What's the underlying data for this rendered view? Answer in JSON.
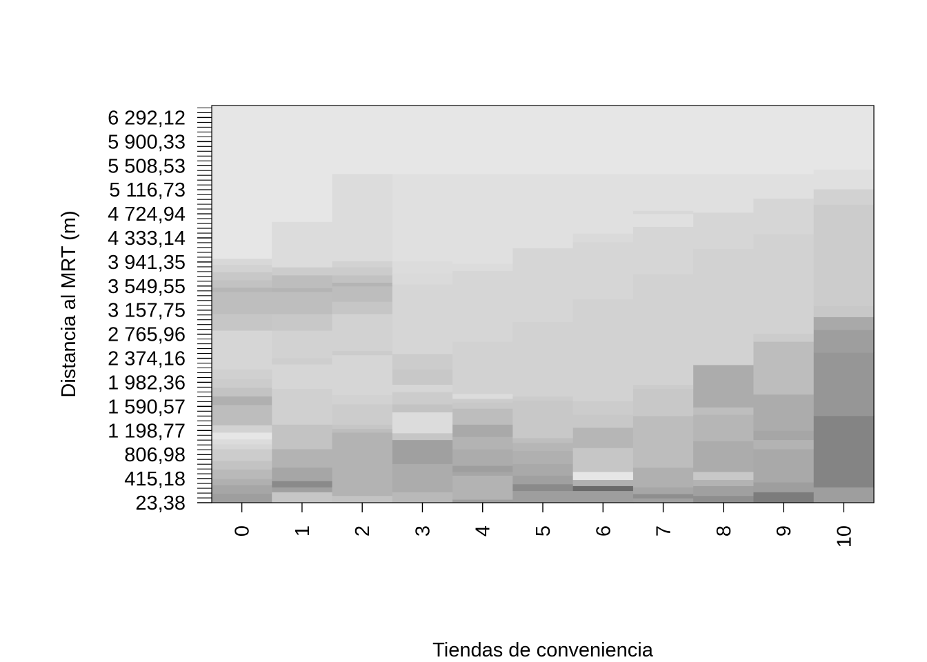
{
  "chart_data": {
    "type": "heatmap",
    "title": "",
    "xlabel": "Tiendas de conveniencia",
    "ylabel": "Distancia al MRT (m)",
    "x": [
      "0",
      "1",
      "2",
      "3",
      "4",
      "5",
      "6",
      "7",
      "8",
      "9",
      "10"
    ],
    "ylim": [
      23.38,
      6488.02
    ],
    "y_tick_values": [
      23.38,
      415.18,
      806.98,
      1198.77,
      1590.57,
      1982.36,
      2374.16,
      2765.96,
      3157.75,
      3549.55,
      3941.35,
      4333.14,
      4724.94,
      5116.73,
      5508.53,
      5900.33,
      6292.12
    ],
    "y_tick_labels": [
      "23,38",
      "415,18",
      "806,98",
      "1 198,77",
      "1 590,57",
      "1 982,36",
      "2 374,16",
      "2 765,96",
      "3 157,75",
      "3 549,55",
      "3 941,35",
      "4 333,14",
      "4 724,94",
      "5 116,73",
      "5 508,53",
      "5 900,33",
      "6 292,12"
    ],
    "grid": false,
    "legend": "none",
    "colors": {
      "low": "#848484",
      "high": "#e6e6e6",
      "frame": "#000000"
    },
    "columns": [
      {
        "x": "0",
        "cells": [
          [
            23.38,
            175,
            "#9e9e9e"
          ],
          [
            175,
            315,
            "#a6a6a6"
          ],
          [
            315,
            415,
            "#b0b0b0"
          ],
          [
            415,
            570,
            "#b9b9b9"
          ],
          [
            570,
            710,
            "#c3c3c3"
          ],
          [
            710,
            900,
            "#cccccc"
          ],
          [
            900,
            980,
            "#d6d6d6"
          ],
          [
            980,
            1060,
            "#dcdcdc"
          ],
          [
            1060,
            1170,
            "#e6e6e6"
          ],
          [
            1170,
            1290,
            "#d2d2d2"
          ],
          [
            1290,
            1620,
            "#bdbdbd"
          ],
          [
            1620,
            1760,
            "#b0b0b0"
          ],
          [
            1760,
            1900,
            "#c3c3c3"
          ],
          [
            1900,
            2040,
            "#cccccc"
          ],
          [
            2040,
            2200,
            "#d0d0d0"
          ],
          [
            2200,
            2830,
            "#d6d6d6"
          ],
          [
            2830,
            3100,
            "#c6c6c6"
          ],
          [
            3100,
            3460,
            "#bebebe"
          ],
          [
            3460,
            3530,
            "#b6b6b6"
          ],
          [
            3530,
            3650,
            "#c2c2c2"
          ],
          [
            3650,
            3780,
            "#c8c8c8"
          ],
          [
            3780,
            3900,
            "#d2d2d2"
          ],
          [
            3900,
            4000,
            "#d8d8d8"
          ],
          [
            4000,
            6488.02,
            "#e6e6e6"
          ]
        ]
      },
      {
        "x": "1",
        "cells": [
          [
            23.38,
            200,
            "#c6c6c6"
          ],
          [
            200,
            280,
            "#a0a0a0"
          ],
          [
            280,
            380,
            "#8a8a8a"
          ],
          [
            380,
            600,
            "#a6a6a6"
          ],
          [
            600,
            900,
            "#b3b3b3"
          ],
          [
            900,
            1300,
            "#c3c3c3"
          ],
          [
            1300,
            1880,
            "#d0d0d0"
          ],
          [
            1880,
            2280,
            "#d6d6d6"
          ],
          [
            2280,
            2380,
            "#cecece"
          ],
          [
            2380,
            2830,
            "#d2d2d2"
          ],
          [
            2830,
            3100,
            "#c8c8c8"
          ],
          [
            3100,
            3460,
            "#bebebe"
          ],
          [
            3460,
            3520,
            "#b4b4b4"
          ],
          [
            3520,
            3730,
            "#bdbdbd"
          ],
          [
            3730,
            3860,
            "#cccccc"
          ],
          [
            3860,
            4600,
            "#dcdcdc"
          ],
          [
            4600,
            6488.02,
            "#e6e6e6"
          ]
        ]
      },
      {
        "x": "2",
        "cells": [
          [
            23.38,
            140,
            "#c3c3c3"
          ],
          [
            140,
            1170,
            "#b3b3b3"
          ],
          [
            1170,
            1230,
            "#bdbdbd"
          ],
          [
            1230,
            1300,
            "#c6c6c6"
          ],
          [
            1300,
            1630,
            "#cccccc"
          ],
          [
            1630,
            1780,
            "#d2d2d2"
          ],
          [
            1780,
            2430,
            "#d6d6d6"
          ],
          [
            2430,
            2500,
            "#cccccc"
          ],
          [
            2500,
            3100,
            "#d2d2d2"
          ],
          [
            3100,
            3300,
            "#c6c6c6"
          ],
          [
            3300,
            3550,
            "#bdbdbd"
          ],
          [
            3550,
            3610,
            "#b4b4b4"
          ],
          [
            3610,
            3730,
            "#c2c2c2"
          ],
          [
            3730,
            3860,
            "#cccccc"
          ],
          [
            3860,
            3960,
            "#d2d2d2"
          ],
          [
            3960,
            5380,
            "#dcdcdc"
          ],
          [
            5380,
            6488.02,
            "#e6e6e6"
          ]
        ]
      },
      {
        "x": "3",
        "cells": [
          [
            23.38,
            200,
            "#b9b9b9"
          ],
          [
            200,
            660,
            "#acacac"
          ],
          [
            660,
            1050,
            "#a0a0a0"
          ],
          [
            1050,
            1160,
            "#c6c6c6"
          ],
          [
            1160,
            1500,
            "#dcdcdc"
          ],
          [
            1500,
            1630,
            "#c3c3c3"
          ],
          [
            1630,
            1830,
            "#cccccc"
          ],
          [
            1830,
            1950,
            "#d6d6d6"
          ],
          [
            1950,
            2200,
            "#c8c8c8"
          ],
          [
            2200,
            2450,
            "#cccccc"
          ],
          [
            2450,
            3580,
            "#d6d6d6"
          ],
          [
            3580,
            3760,
            "#dadada"
          ],
          [
            3760,
            3960,
            "#dcdcdc"
          ],
          [
            3960,
            5380,
            "#e0e0e0"
          ],
          [
            5380,
            6488.02,
            "#e6e6e6"
          ]
        ]
      },
      {
        "x": "4",
        "cells": [
          [
            23.38,
            80,
            "#9e9e9e"
          ],
          [
            80,
            470,
            "#b3b3b3"
          ],
          [
            470,
            530,
            "#a6a6a6"
          ],
          [
            530,
            630,
            "#9e9e9e"
          ],
          [
            630,
            900,
            "#acacac"
          ],
          [
            900,
            1100,
            "#b3b3b3"
          ],
          [
            1100,
            1300,
            "#a9a9a9"
          ],
          [
            1300,
            1560,
            "#bdbdbd"
          ],
          [
            1560,
            1660,
            "#c8c8c8"
          ],
          [
            1660,
            1720,
            "#cccccc"
          ],
          [
            1720,
            1800,
            "#dcdcdc"
          ],
          [
            1800,
            2650,
            "#d2d2d2"
          ],
          [
            2650,
            3800,
            "#d6d6d6"
          ],
          [
            3800,
            3920,
            "#dcdcdc"
          ],
          [
            3920,
            5380,
            "#e0e0e0"
          ],
          [
            5380,
            6488.02,
            "#e6e6e6"
          ]
        ]
      },
      {
        "x": "5",
        "cells": [
          [
            23.38,
            220,
            "#9e9e9e"
          ],
          [
            220,
            330,
            "#8a8a8a"
          ],
          [
            330,
            470,
            "#a0a0a0"
          ],
          [
            470,
            660,
            "#a9a9a9"
          ],
          [
            660,
            870,
            "#b0b0b0"
          ],
          [
            870,
            1000,
            "#b6b6b6"
          ],
          [
            1000,
            1080,
            "#bebebe"
          ],
          [
            1080,
            1690,
            "#c8c8c8"
          ],
          [
            1690,
            1760,
            "#cccccc"
          ],
          [
            1760,
            2970,
            "#d2d2d2"
          ],
          [
            2970,
            4170,
            "#d6d6d6"
          ],
          [
            4170,
            5380,
            "#e0e0e0"
          ],
          [
            5380,
            6488.02,
            "#e6e6e6"
          ]
        ]
      },
      {
        "x": "6",
        "cells": [
          [
            23.38,
            220,
            "#9e9e9e"
          ],
          [
            220,
            300,
            "#6a6a6a"
          ],
          [
            300,
            400,
            "#b0b0b0"
          ],
          [
            400,
            530,
            "#e6e6e6"
          ],
          [
            530,
            920,
            "#c6c6c6"
          ],
          [
            920,
            1250,
            "#b6b6b6"
          ],
          [
            1250,
            1460,
            "#c8c8c8"
          ],
          [
            1460,
            1680,
            "#cccccc"
          ],
          [
            1680,
            3340,
            "#d2d2d2"
          ],
          [
            3340,
            4270,
            "#d6d6d6"
          ],
          [
            4270,
            4410,
            "#dadada"
          ],
          [
            4410,
            5380,
            "#e0e0e0"
          ],
          [
            5380,
            6488.02,
            "#e6e6e6"
          ]
        ]
      },
      {
        "x": "7",
        "cells": [
          [
            23.38,
            100,
            "#a0a0a0"
          ],
          [
            100,
            170,
            "#8e8e8e"
          ],
          [
            170,
            280,
            "#a6a6a6"
          ],
          [
            280,
            600,
            "#b0b0b0"
          ],
          [
            600,
            1440,
            "#bdbdbd"
          ],
          [
            1440,
            1880,
            "#c8c8c8"
          ],
          [
            1880,
            1950,
            "#cccccc"
          ],
          [
            1950,
            3750,
            "#d2d2d2"
          ],
          [
            3750,
            4520,
            "#d6d6d6"
          ],
          [
            4520,
            4730,
            "#e0e0e0"
          ],
          [
            4730,
            4780,
            "#d8d8d8"
          ],
          [
            4780,
            5380,
            "#e0e0e0"
          ],
          [
            5380,
            6488.02,
            "#e6e6e6"
          ]
        ]
      },
      {
        "x": "8",
        "cells": [
          [
            23.38,
            140,
            "#8e8e8e"
          ],
          [
            140,
            300,
            "#a0a0a0"
          ],
          [
            300,
            400,
            "#b3b3b3"
          ],
          [
            400,
            530,
            "#c8c8c8"
          ],
          [
            530,
            1030,
            "#acacac"
          ],
          [
            1030,
            1460,
            "#b6b6b6"
          ],
          [
            1460,
            1580,
            "#bebebe"
          ],
          [
            1580,
            2270,
            "#acacac"
          ],
          [
            2270,
            4160,
            "#d2d2d2"
          ],
          [
            4160,
            4750,
            "#d6d6d6"
          ],
          [
            4750,
            5380,
            "#e0e0e0"
          ],
          [
            5380,
            6488.02,
            "#e6e6e6"
          ]
        ]
      },
      {
        "x": "9",
        "cells": [
          [
            23.38,
            200,
            "#7c7c7c"
          ],
          [
            200,
            360,
            "#9e9e9e"
          ],
          [
            360,
            900,
            "#a9a9a9"
          ],
          [
            900,
            1050,
            "#b3b3b3"
          ],
          [
            1050,
            1200,
            "#a6a6a6"
          ],
          [
            1200,
            1790,
            "#acacac"
          ],
          [
            1790,
            2650,
            "#bdbdbd"
          ],
          [
            2650,
            2780,
            "#cccccc"
          ],
          [
            2780,
            4400,
            "#d2d2d2"
          ],
          [
            4400,
            4980,
            "#d6d6d6"
          ],
          [
            4980,
            5380,
            "#e0e0e0"
          ],
          [
            5380,
            6488.02,
            "#e6e6e6"
          ]
        ]
      },
      {
        "x": "10",
        "cells": [
          [
            23.38,
            280,
            "#9e9e9e"
          ],
          [
            280,
            1440,
            "#848484"
          ],
          [
            1440,
            2470,
            "#969696"
          ],
          [
            2470,
            2840,
            "#9e9e9e"
          ],
          [
            2840,
            3050,
            "#a9a9a9"
          ],
          [
            3050,
            3230,
            "#c8c8c8"
          ],
          [
            3230,
            4880,
            "#cccccc"
          ],
          [
            4880,
            5130,
            "#d2d2d2"
          ],
          [
            5130,
            5450,
            "#e0e0e0"
          ],
          [
            5450,
            6488.02,
            "#e6e6e6"
          ]
        ]
      }
    ]
  }
}
